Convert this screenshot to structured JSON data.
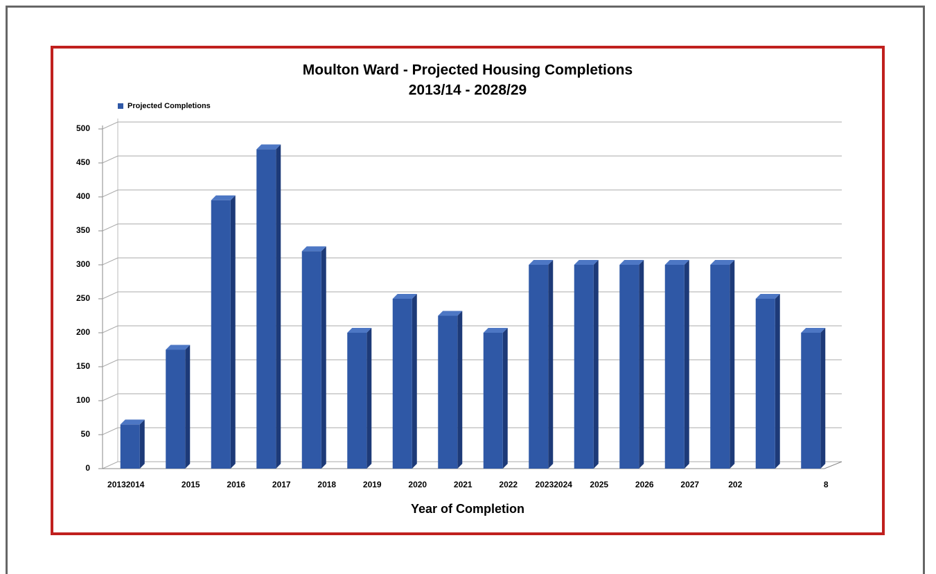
{
  "chart_data": {
    "type": "bar3d",
    "title": "Moulton Ward - Projected Housing Completions",
    "subtitle": "2013/14 - 2028/29",
    "x_label": "Year of Completion",
    "categories": [
      "20132014",
      "2015",
      "2016",
      "2017",
      "2018",
      "2019",
      "2020",
      "2021",
      "2022",
      "20232024",
      "2025",
      "2026",
      "2027",
      "202",
      null,
      "8"
    ],
    "series": [
      {
        "name": "Projected Completions",
        "color": "#2f58a6",
        "values": [
          65,
          175,
          395,
          470,
          320,
          200,
          250,
          225,
          200,
          300,
          300,
          300,
          300,
          300,
          250,
          200
        ]
      }
    ],
    "ylim": [
      0,
      500
    ],
    "yticks": [
      0,
      50,
      100,
      150,
      200,
      250,
      300,
      350,
      400,
      450,
      500
    ],
    "grid": true,
    "legend": "top-left"
  }
}
